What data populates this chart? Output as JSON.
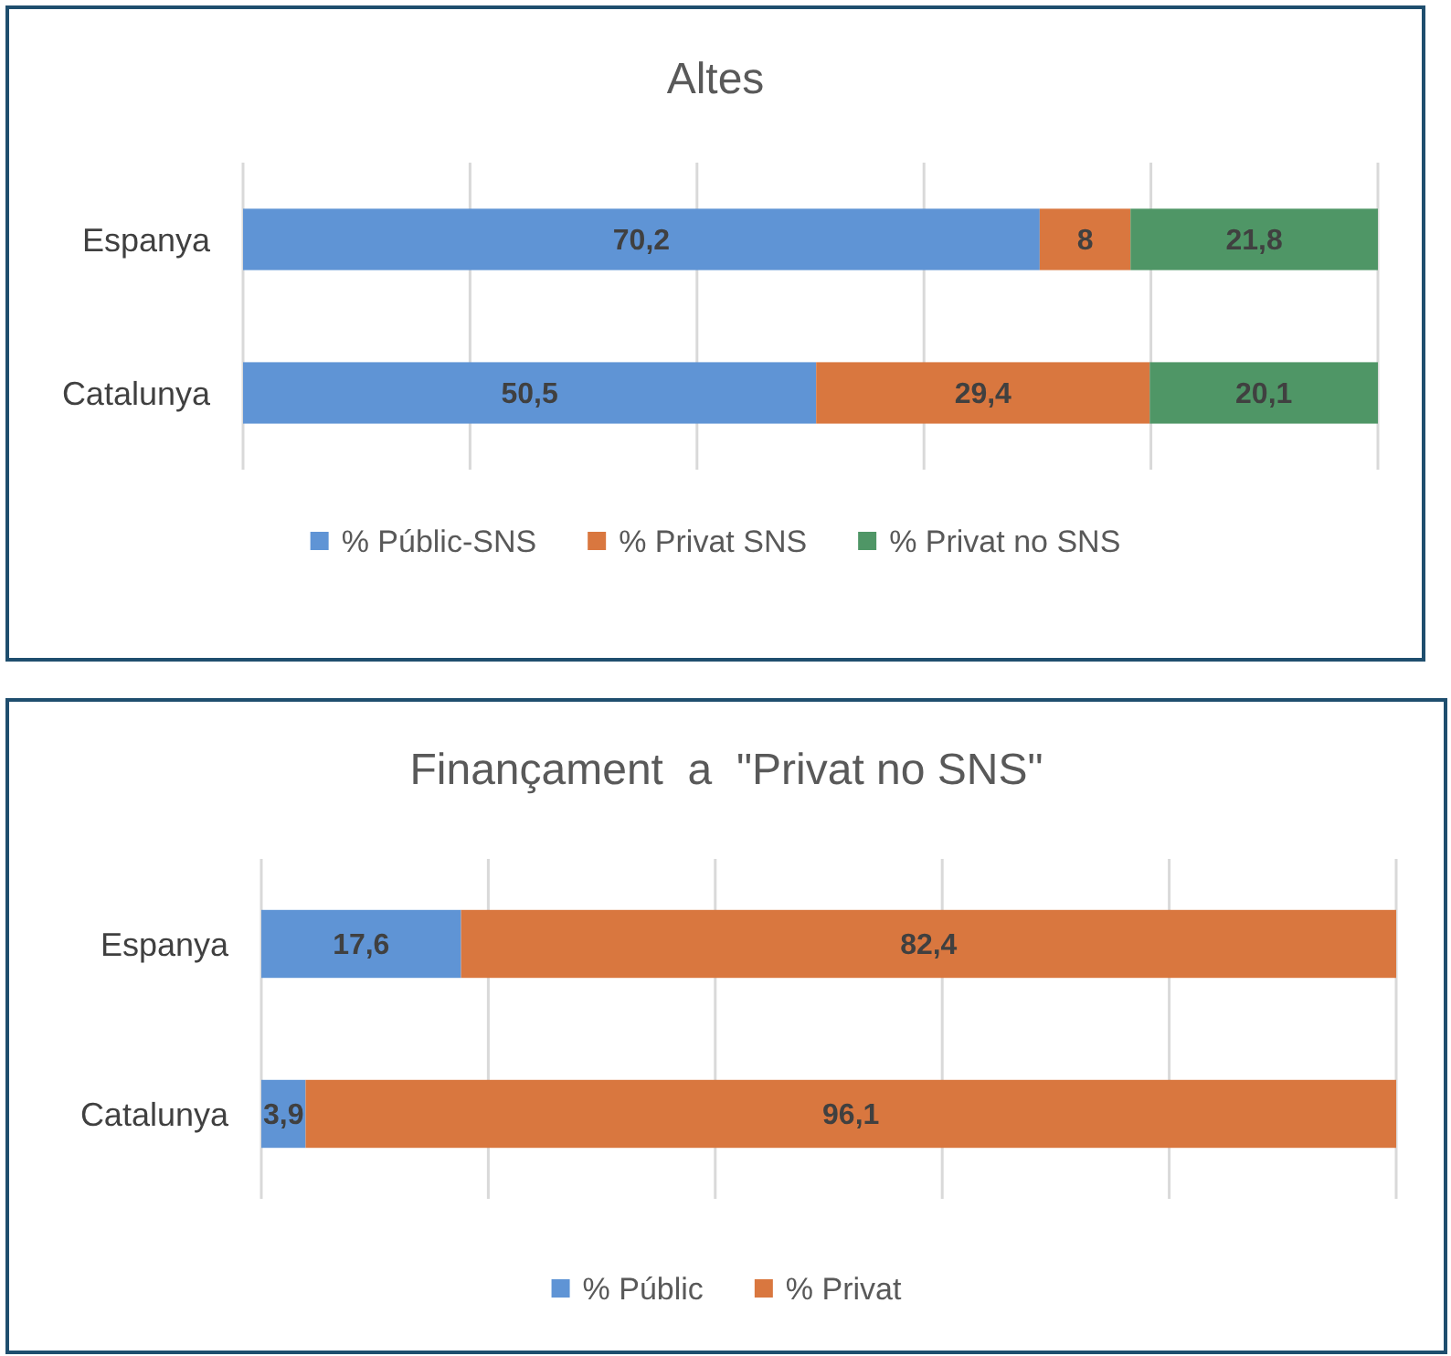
{
  "chart_data": [
    {
      "type": "bar",
      "title": "Altes",
      "orientation": "horizontal",
      "stacked": true,
      "categories": [
        "Espanya",
        "Catalunya"
      ],
      "series": [
        {
          "name": "% Públic-SNS",
          "color": "#5f94d5",
          "values": [
            70.2,
            50.5
          ],
          "value_labels": [
            "70,2",
            "50,5"
          ]
        },
        {
          "name": "% Privat SNS",
          "color": "#d9773f",
          "values": [
            8,
            29.4
          ],
          "value_labels": [
            "8",
            "29,4"
          ]
        },
        {
          "name": "% Privat no SNS",
          "color": "#4f9666",
          "values": [
            21.8,
            20.1
          ],
          "value_labels": [
            "21,8",
            "20,1"
          ]
        }
      ],
      "xlim": [
        0,
        100
      ],
      "xticks": [
        {
          "value": 0,
          "label": null
        },
        {
          "value": 20,
          "label": null
        },
        {
          "value": 40,
          "label": null
        },
        {
          "value": 60,
          "label": null
        },
        {
          "value": 80,
          "label": null
        },
        {
          "value": 100,
          "label": null
        }
      ],
      "grid": "x",
      "tick_labels": "y",
      "legend": "bottom"
    },
    {
      "type": "bar",
      "title": "Finançament  a  \"Privat no SNS\"",
      "orientation": "horizontal",
      "stacked": true,
      "categories": [
        "Espanya",
        "Catalunya"
      ],
      "series": [
        {
          "name": "% Públic",
          "color": "#5f94d5",
          "values": [
            17.6,
            3.9
          ],
          "value_labels": [
            "17,6",
            "3,9"
          ]
        },
        {
          "name": "% Privat",
          "color": "#d9773f",
          "values": [
            82.4,
            96.1
          ],
          "value_labels": [
            "82,4",
            "96,1"
          ]
        }
      ],
      "xlim": [
        0,
        100
      ],
      "xticks": [
        {
          "value": 0,
          "label": null
        },
        {
          "value": 20,
          "label": null
        },
        {
          "value": 40,
          "label": null
        },
        {
          "value": 60,
          "label": null
        },
        {
          "value": 80,
          "label": null
        },
        {
          "value": 100,
          "label": null
        }
      ],
      "grid": "x",
      "tick_labels": "y",
      "legend": "bottom"
    }
  ]
}
